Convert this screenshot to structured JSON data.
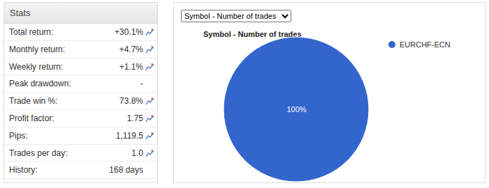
{
  "stats": {
    "title": "Stats",
    "rows": [
      [
        "Total return:",
        "+30.1%"
      ],
      [
        "Monthly return:",
        "+4.7%"
      ],
      [
        "Weekly return:",
        "+1.1%"
      ],
      [
        "Peak drawdown:",
        "-"
      ],
      [
        "Trade win %:",
        "73.8%"
      ],
      [
        "Profit factor:",
        "1.75"
      ],
      [
        "Pips:",
        "1,119.5"
      ],
      [
        "Trades per day:",
        "1.0"
      ],
      [
        "History:",
        "168 days"
      ]
    ]
  },
  "selector": "Symbol - Number of trades",
  "chart_data": {
    "type": "pie",
    "title": "Symbol - Number of trades",
    "categories": [
      "EURCHF-ECN"
    ],
    "values": [
      100
    ],
    "value_labels": [
      "100%"
    ],
    "colors": [
      "#3366cc"
    ],
    "data_labels": true,
    "legend": "top-right"
  }
}
